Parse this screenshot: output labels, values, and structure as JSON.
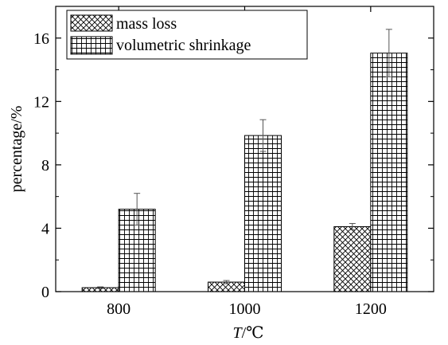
{
  "chart_data": {
    "type": "bar",
    "categories": [
      "800",
      "1000",
      "1200"
    ],
    "series": [
      {
        "name": "mass loss",
        "values": [
          0.25,
          0.6,
          4.1
        ],
        "errors": [
          0.05,
          0.1,
          0.2
        ],
        "pattern": "crosshatch"
      },
      {
        "name": "volumetric shrinkage",
        "values": [
          5.2,
          9.85,
          15.05
        ],
        "errors": [
          1.0,
          1.0,
          1.5
        ],
        "pattern": "grid"
      }
    ],
    "xlabel_italic": "T",
    "xlabel_unit": "/℃",
    "ylabel": "percentage/%",
    "ylim": [
      0,
      18
    ],
    "yticks": [
      0,
      4,
      8,
      12,
      16
    ],
    "grid": false,
    "legend_position": "top-left",
    "colors": {
      "bar_stroke": "#000000",
      "background": "#ffffff",
      "error_bar": "#555555"
    }
  }
}
